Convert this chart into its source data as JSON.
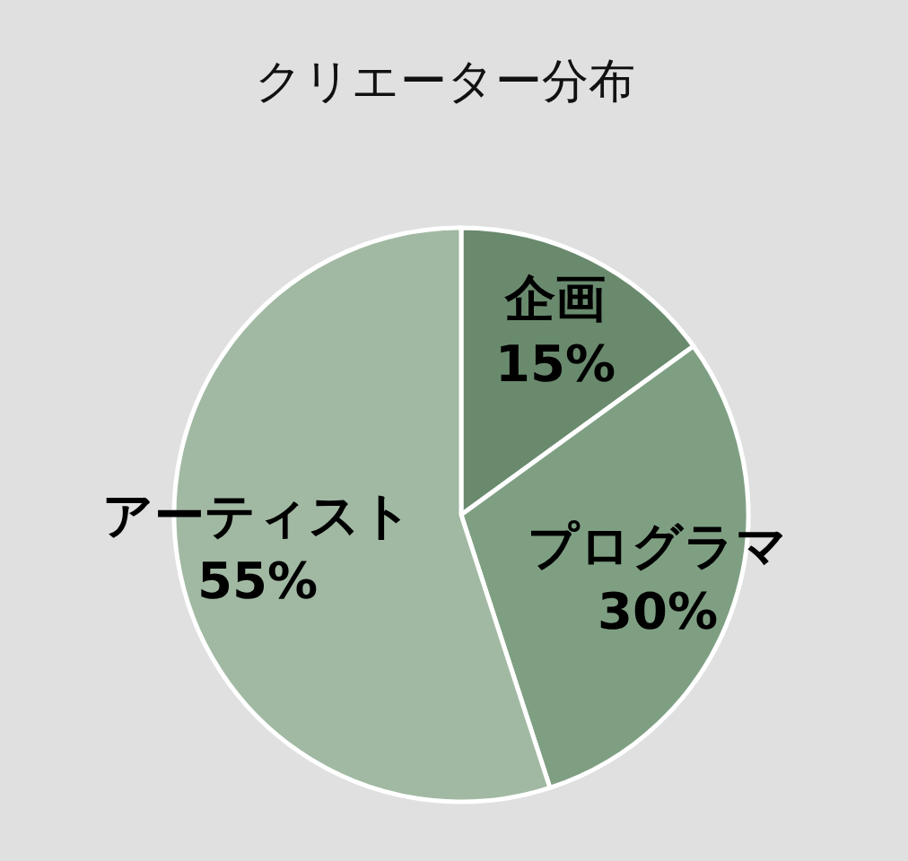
{
  "chart_data": {
    "type": "pie",
    "title": "クリエーター分布",
    "categories": [
      "企画",
      "プログラマ",
      "アーティスト"
    ],
    "values": [
      15,
      30,
      55
    ],
    "value_labels": [
      "15%",
      "30%",
      "55%"
    ],
    "colors": [
      "#6a8a6e",
      "#7f9f83",
      "#a1b9a3"
    ]
  }
}
